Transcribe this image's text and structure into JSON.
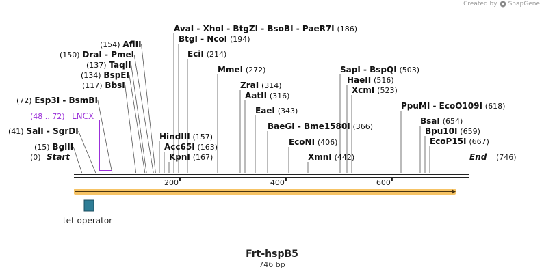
{
  "credit": {
    "prefix": "Created by",
    "brand": "SnapGene"
  },
  "map": {
    "name": "Frt-hspB5",
    "length_label": "746 bp",
    "length": 746,
    "start_label": "Start",
    "start_pos": "(0)",
    "end_label": "End",
    "end_pos": "(746)",
    "ticks": [
      {
        "bp": 200,
        "label": "200"
      },
      {
        "bp": 400,
        "label": "400"
      },
      {
        "bp": 600,
        "label": "600"
      }
    ],
    "sites": [
      {
        "group": [
          "AvaI",
          "XhoI",
          "BtgZI",
          "BsoBI",
          "PaeR7I"
        ],
        "pos": "(186)",
        "bp": 186
      },
      {
        "group": [
          "BtgI",
          "NcoI"
        ],
        "pos": "(194)",
        "bp": 194
      },
      {
        "group": [
          "EciI"
        ],
        "pos": "(214)",
        "bp": 214
      },
      {
        "group": [
          "MmeI"
        ],
        "pos": "(272)",
        "bp": 272
      },
      {
        "group": [
          "ZraI"
        ],
        "pos": "(314)",
        "bp": 314
      },
      {
        "group": [
          "AatII"
        ],
        "pos": "(316)",
        "bp": 316
      },
      {
        "group": [
          "EaeI"
        ],
        "pos": "(343)",
        "bp": 343
      },
      {
        "group": [
          "BaeGI",
          "Bme1580I"
        ],
        "pos": "(366)",
        "bp": 366
      },
      {
        "group": [
          "EcoNI"
        ],
        "pos": "(406)",
        "bp": 406
      },
      {
        "group": [
          "XmnI"
        ],
        "pos": "(442)",
        "bp": 442
      },
      {
        "group": [
          "SapI",
          "BspQI"
        ],
        "pos": "(503)",
        "bp": 503
      },
      {
        "group": [
          "HaeII"
        ],
        "pos": "(516)",
        "bp": 516
      },
      {
        "group": [
          "XcmI"
        ],
        "pos": "(523)",
        "bp": 523
      },
      {
        "group": [
          "PpuMI",
          "EcoO109I"
        ],
        "pos": "(618)",
        "bp": 618
      },
      {
        "group": [
          "BsaI"
        ],
        "pos": "(654)",
        "bp": 654
      },
      {
        "group": [
          "Bpu10I"
        ],
        "pos": "(659)",
        "bp": 659
      },
      {
        "group": [
          "EcoP15I"
        ],
        "pos": "(667)",
        "bp": 667
      },
      {
        "group": [
          "AflII"
        ],
        "pos": "(154)",
        "bp": 154
      },
      {
        "group": [
          "DraI",
          "PmeI"
        ],
        "pos": "(150)",
        "bp": 150
      },
      {
        "group": [
          "TaqII"
        ],
        "pos": "(137)",
        "bp": 137
      },
      {
        "group": [
          "BspEI"
        ],
        "pos": "(134)",
        "bp": 134
      },
      {
        "group": [
          "BbsI"
        ],
        "pos": "(117)",
        "bp": 117
      },
      {
        "group": [
          "Esp3I",
          "BsmBI"
        ],
        "pos": "(72)",
        "bp": 72
      },
      {
        "group": [
          "SalI",
          "SgrDI"
        ],
        "pos": "(41)",
        "bp": 41
      },
      {
        "group": [
          "BglII"
        ],
        "pos": "(15)",
        "bp": 15
      },
      {
        "group": [
          "HindIII"
        ],
        "pos": "(157)",
        "bp": 157
      },
      {
        "group": [
          "Acc65I"
        ],
        "pos": "(163)",
        "bp": 163
      },
      {
        "group": [
          "KpnI"
        ],
        "pos": "(167)",
        "bp": 167
      }
    ],
    "primer": {
      "name": "LNCX",
      "range": "(48 .. 72)",
      "start": 48,
      "end": 72,
      "color": "#9b30d9"
    },
    "features": [
      {
        "name": "tet operator",
        "color": "#2e7d96"
      }
    ],
    "orf_color": "#f5b84a"
  }
}
